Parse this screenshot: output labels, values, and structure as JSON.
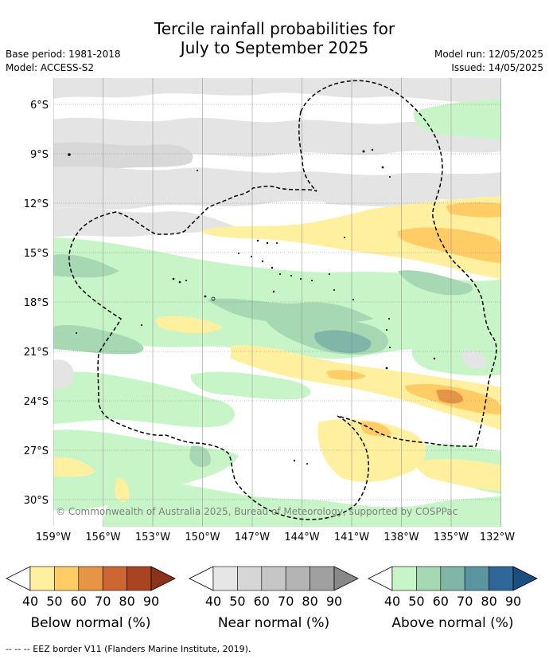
{
  "header": {
    "title_line1": "Tercile rainfall probabilities for",
    "title_line2": "July to September 2025",
    "base_period": "Base period: 1981-2018",
    "model": "Model: ACCESS-S2",
    "model_run": "Model run: 12/05/2025",
    "issued": "Issued: 14/05/2025"
  },
  "map": {
    "lat_labels": [
      "6°S",
      "9°S",
      "12°S",
      "15°S",
      "18°S",
      "21°S",
      "24°S",
      "27°S",
      "30°S"
    ],
    "lon_labels": [
      "159°W",
      "156°W",
      "153°W",
      "150°W",
      "147°W",
      "144°W",
      "141°W",
      "138°W",
      "135°W",
      "132°W"
    ],
    "copyright": "© Commonwealth of Australia 2025, Bureau of Meteorology, supported by COSPPac"
  },
  "colorbars": [
    {
      "title": "Below normal (%)",
      "ticks": [
        "40",
        "50",
        "60",
        "70",
        "80",
        "90"
      ],
      "colors": [
        "#ffffff",
        "#fff0a0",
        "#ffcc66",
        "#e69445",
        "#cc6633",
        "#a84422",
        "#88331a"
      ]
    },
    {
      "title": "Near normal (%)",
      "ticks": [
        "40",
        "50",
        "60",
        "70",
        "80",
        "90"
      ],
      "colors": [
        "#ffffff",
        "#e6e6e6",
        "#d6d6d6",
        "#c6c6c6",
        "#b4b4b4",
        "#a0a0a0",
        "#888888"
      ]
    },
    {
      "title": "Above normal (%)",
      "ticks": [
        "40",
        "50",
        "60",
        "70",
        "80",
        "90"
      ],
      "colors": [
        "#ffffff",
        "#c8f5c8",
        "#a6d8b4",
        "#80b6a8",
        "#5a96a2",
        "#2f6799",
        "#1a4d80"
      ]
    }
  ],
  "footnote": "--  --  -- EEZ border V11 (Flanders Marine Institute, 2019)."
}
